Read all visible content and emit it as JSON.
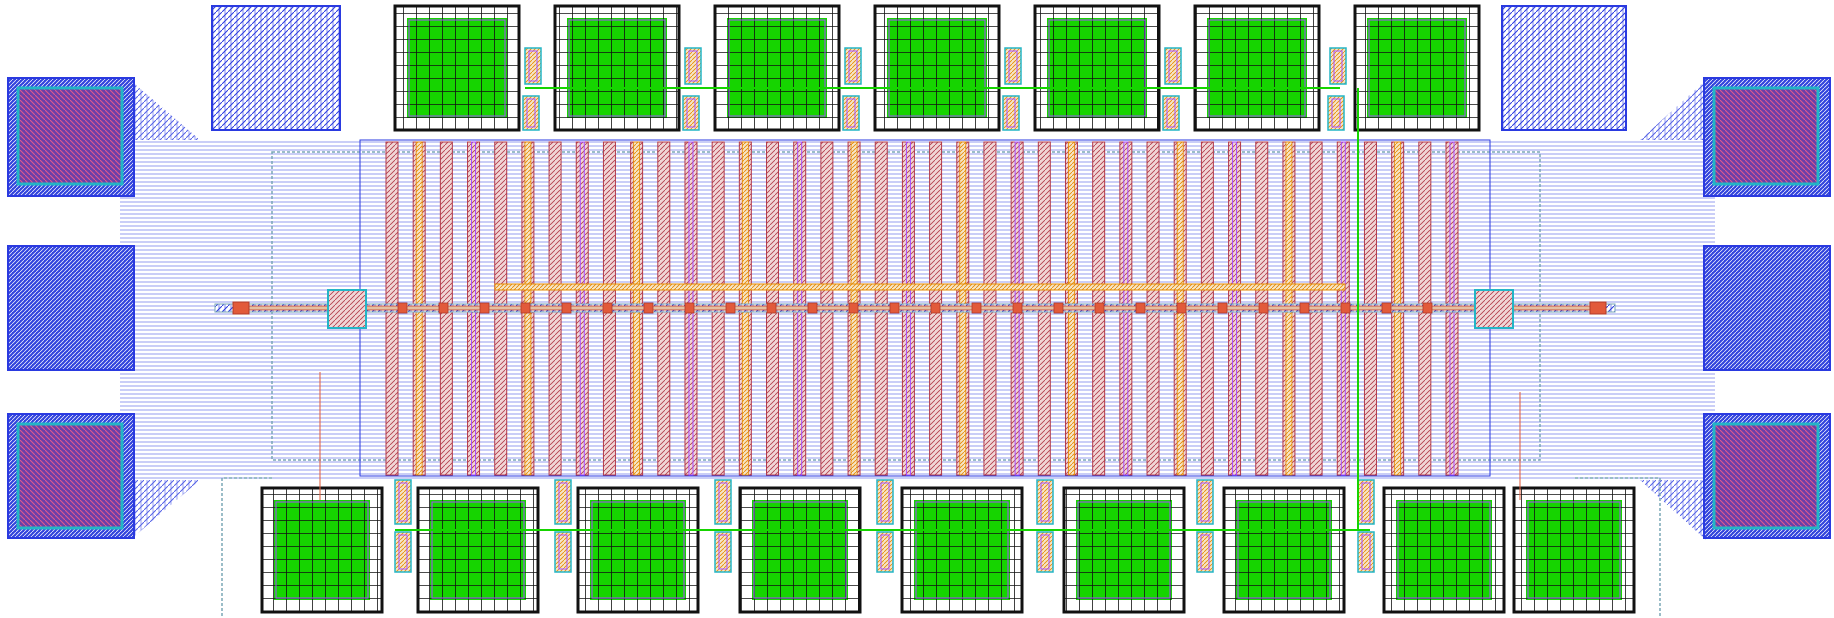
{
  "view": {
    "title": "",
    "layers": [
      {
        "name": "metal1",
        "color": "#1f2fd6"
      },
      {
        "name": "poly",
        "color": "#c23a3a"
      },
      {
        "name": "contact",
        "color": "#ff7a00"
      },
      {
        "name": "via",
        "color": "#a64dff"
      },
      {
        "name": "active",
        "color": "#16d400"
      },
      {
        "name": "well",
        "color": "#23b5c6"
      },
      {
        "name": "grid",
        "color": "#000000"
      }
    ]
  },
  "structure": {
    "left_pads": 3,
    "right_pads": 3,
    "top_blocks": 9,
    "bottom_blocks": 9,
    "finger_count": 40
  }
}
